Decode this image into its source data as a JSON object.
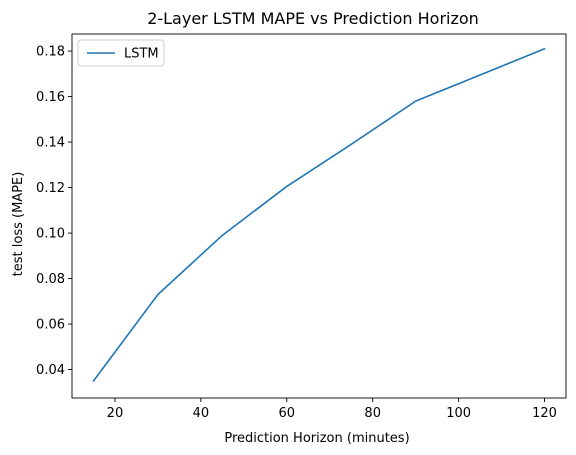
{
  "chart_data": {
    "type": "line",
    "title": "2-Layer LSTM MAPE vs Prediction Horizon",
    "xlabel": "Prediction Horizon (minutes)",
    "ylabel": "test loss (MAPE)",
    "xlim": [
      10,
      125
    ],
    "ylim": [
      0.0275,
      0.1875
    ],
    "xticks": [
      20,
      40,
      60,
      80,
      100,
      120
    ],
    "xtick_labels": [
      "20",
      "40",
      "60",
      "80",
      "100",
      "120"
    ],
    "yticks": [
      0.04,
      0.06,
      0.08,
      0.1,
      0.12,
      0.14,
      0.16,
      0.18
    ],
    "ytick_labels": [
      "0.04",
      "0.06",
      "0.08",
      "0.10",
      "0.12",
      "0.14",
      "0.16",
      "0.18"
    ],
    "grid": false,
    "legend_position": "top-left",
    "series": [
      {
        "name": "LSTM",
        "color": "#1f77b4",
        "x": [
          15,
          30,
          45,
          60,
          75,
          90,
          105,
          120
        ],
        "y": [
          0.035,
          0.073,
          0.099,
          0.1205,
          0.139,
          0.158,
          0.1695,
          0.181
        ]
      }
    ]
  }
}
